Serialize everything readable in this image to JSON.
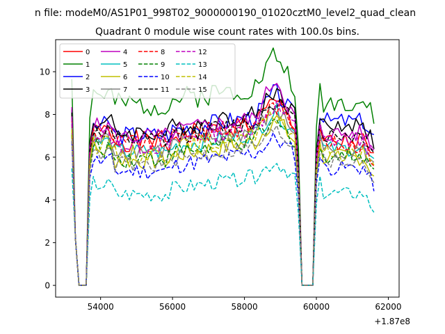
{
  "chart_data": {
    "type": "line",
    "suptitle": "n file: modeM0/AS1P01_998T02_9000000190_01020cztM0_level2_quad_clean",
    "title": "Quadrant 0 module wise count rates with 100.0s bins.",
    "xlabel": "",
    "ylabel": "",
    "x_offset_label": "+1.87e8",
    "xlim": [
      52750,
      62300
    ],
    "ylim": [
      -0.55,
      11.5
    ],
    "x_ticks": [
      54000,
      56000,
      58000,
      60000,
      62000
    ],
    "x_tick_labels": [
      "54000",
      "56000",
      "58000",
      "60000",
      "62000"
    ],
    "y_ticks": [
      0,
      2,
      4,
      6,
      8,
      10
    ],
    "y_tick_labels": [
      "0",
      "2",
      "4",
      "6",
      "8",
      "10"
    ],
    "legend_position": "top-left",
    "x": {
      "start": 53200,
      "step": 100,
      "count": 85
    },
    "series": [
      {
        "name": "0",
        "color": "#ff0000",
        "dash": "solid",
        "base": 7.0,
        "amp": 0.5,
        "hi": 8.6,
        "lo": 6.7,
        "seed": 1
      },
      {
        "name": "1",
        "color": "#008000",
        "dash": "solid",
        "base": 8.7,
        "amp": 0.55,
        "hi": 10.9,
        "lo": 8.6,
        "seed": 2
      },
      {
        "name": "2",
        "color": "#0000ff",
        "dash": "solid",
        "base": 7.3,
        "amp": 0.45,
        "hi": 9.1,
        "lo": 7.7,
        "seed": 3
      },
      {
        "name": "3",
        "color": "#000000",
        "dash": "solid",
        "base": 7.4,
        "amp": 0.45,
        "hi": 9.2,
        "lo": 7.5,
        "seed": 4
      },
      {
        "name": "4",
        "color": "#bf00bf",
        "dash": "solid",
        "base": 7.2,
        "amp": 0.45,
        "hi": 9.8,
        "lo": 7.1,
        "seed": 5
      },
      {
        "name": "5",
        "color": "#00bfbf",
        "dash": "solid",
        "base": 6.5,
        "amp": 0.4,
        "hi": 8.2,
        "lo": 6.4,
        "seed": 6
      },
      {
        "name": "6",
        "color": "#bfbf00",
        "dash": "solid",
        "base": 6.1,
        "amp": 0.45,
        "hi": 7.9,
        "lo": 6.0,
        "seed": 7
      },
      {
        "name": "7",
        "color": "#808080",
        "dash": "solid",
        "base": 6.6,
        "amp": 0.45,
        "hi": 8.3,
        "lo": 6.3,
        "seed": 8
      },
      {
        "name": "8",
        "color": "#ff0000",
        "dash": "dashed",
        "base": 6.9,
        "amp": 0.45,
        "hi": 8.5,
        "lo": 6.6,
        "seed": 9
      },
      {
        "name": "9",
        "color": "#008000",
        "dash": "dashed",
        "base": 6.2,
        "amp": 0.45,
        "hi": 7.6,
        "lo": 6.1,
        "seed": 10
      },
      {
        "name": "10",
        "color": "#0000ff",
        "dash": "dashed",
        "base": 5.6,
        "amp": 0.4,
        "hi": 6.9,
        "lo": 5.5,
        "seed": 11
      },
      {
        "name": "11",
        "color": "#000000",
        "dash": "dashed",
        "base": 7.0,
        "amp": 0.45,
        "hi": 8.8,
        "lo": 7.0,
        "seed": 12
      },
      {
        "name": "12",
        "color": "#bf00bf",
        "dash": "dashed",
        "base": 6.8,
        "amp": 0.45,
        "hi": 8.5,
        "lo": 6.8,
        "seed": 13
      },
      {
        "name": "13",
        "color": "#00bfbf",
        "dash": "dashed",
        "base": 4.5,
        "amp": 0.35,
        "hi": 5.8,
        "lo": 4.3,
        "seed": 14
      },
      {
        "name": "14",
        "color": "#bfbf00",
        "dash": "dashed",
        "base": 6.4,
        "amp": 0.45,
        "hi": 8.0,
        "lo": 6.2,
        "seed": 15
      },
      {
        "name": "15",
        "color": "#808080",
        "dash": "dashed",
        "base": 5.9,
        "amp": 0.4,
        "hi": 7.3,
        "lo": 5.8,
        "seed": 16
      }
    ]
  }
}
